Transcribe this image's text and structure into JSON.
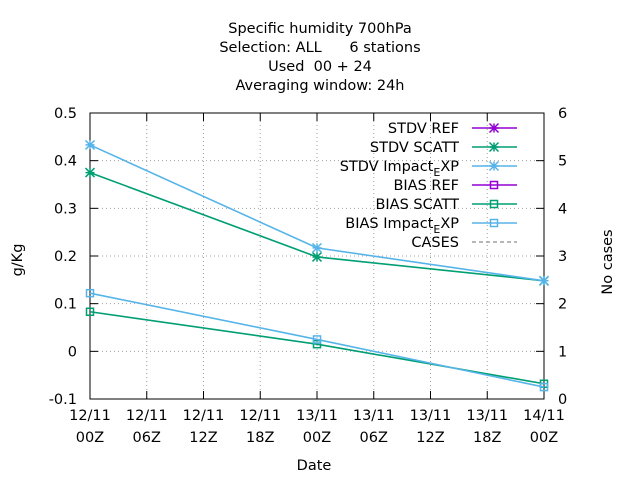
{
  "chart_data": {
    "type": "line",
    "title_lines": [
      "Specific humidity 700hPa",
      "Selection: ALL      6 stations",
      "Used  00 + 24",
      "Averaging window: 24h"
    ],
    "xlabel": "Date",
    "ylabel": "g/Kg",
    "y2label": "No cases",
    "x_ticks": [
      {
        "line1": "12/11",
        "line2": "00Z"
      },
      {
        "line1": "12/11",
        "line2": "06Z"
      },
      {
        "line1": "12/11",
        "line2": "12Z"
      },
      {
        "line1": "12/11",
        "line2": "18Z"
      },
      {
        "line1": "13/11",
        "line2": "00Z"
      },
      {
        "line1": "13/11",
        "line2": "06Z"
      },
      {
        "line1": "13/11",
        "line2": "12Z"
      },
      {
        "line1": "13/11",
        "line2": "18Z"
      },
      {
        "line1": "14/11",
        "line2": "00Z"
      }
    ],
    "x_hours": [
      0,
      6,
      12,
      18,
      24,
      30,
      36,
      42,
      48
    ],
    "ylim": [
      -0.1,
      0.5
    ],
    "y_ticks": [
      -0.1,
      0,
      0.1,
      0.2,
      0.3,
      0.4,
      0.5
    ],
    "y_tick_labels": [
      "-0.1",
      "0",
      "0.1",
      "0.2",
      "0.3",
      "0.4",
      "0.5"
    ],
    "y2lim": [
      0,
      6
    ],
    "y2_ticks": [
      0,
      1,
      2,
      3,
      4,
      5,
      6
    ],
    "y2_tick_labels": [
      "0",
      "1",
      "2",
      "3",
      "4",
      "5",
      "6"
    ],
    "grid": true,
    "legend_position": "top-right",
    "series": [
      {
        "name": "STDV REF",
        "name_parts": [
          "STDV REF"
        ],
        "color": "#9400d3",
        "marker": "star",
        "axis": "y1",
        "x": [],
        "y": []
      },
      {
        "name": "STDV SCATT",
        "name_parts": [
          "STDV SCATT"
        ],
        "color": "#009e73",
        "marker": "star",
        "axis": "y1",
        "x": [
          0,
          24,
          48
        ],
        "y": [
          0.375,
          0.198,
          0.148
        ]
      },
      {
        "name": "STDV Impact_EXP",
        "name_parts": [
          "STDV Impact",
          "E",
          "XP"
        ],
        "color": "#56b4e9",
        "marker": "star",
        "axis": "y1",
        "x": [
          0,
          24,
          48
        ],
        "y": [
          0.433,
          0.217,
          0.148
        ]
      },
      {
        "name": "BIAS REF",
        "name_parts": [
          "BIAS REF"
        ],
        "color": "#9400d3",
        "marker": "square",
        "axis": "y1",
        "x": [],
        "y": []
      },
      {
        "name": "BIAS SCATT",
        "name_parts": [
          "BIAS SCATT"
        ],
        "color": "#009e73",
        "marker": "square",
        "axis": "y1",
        "x": [
          0,
          24,
          48
        ],
        "y": [
          0.083,
          0.015,
          -0.068
        ]
      },
      {
        "name": "BIAS Impact_EXP",
        "name_parts": [
          "BIAS Impact",
          "E",
          "XP"
        ],
        "color": "#56b4e9",
        "marker": "square",
        "axis": "y1",
        "x": [
          0,
          24,
          48
        ],
        "y": [
          0.122,
          0.025,
          -0.075
        ]
      },
      {
        "name": "CASES",
        "name_parts": [
          "CASES"
        ],
        "color": "#a0a0a0",
        "marker": "none",
        "dashed": true,
        "axis": "y2",
        "x": [],
        "y": []
      }
    ]
  }
}
